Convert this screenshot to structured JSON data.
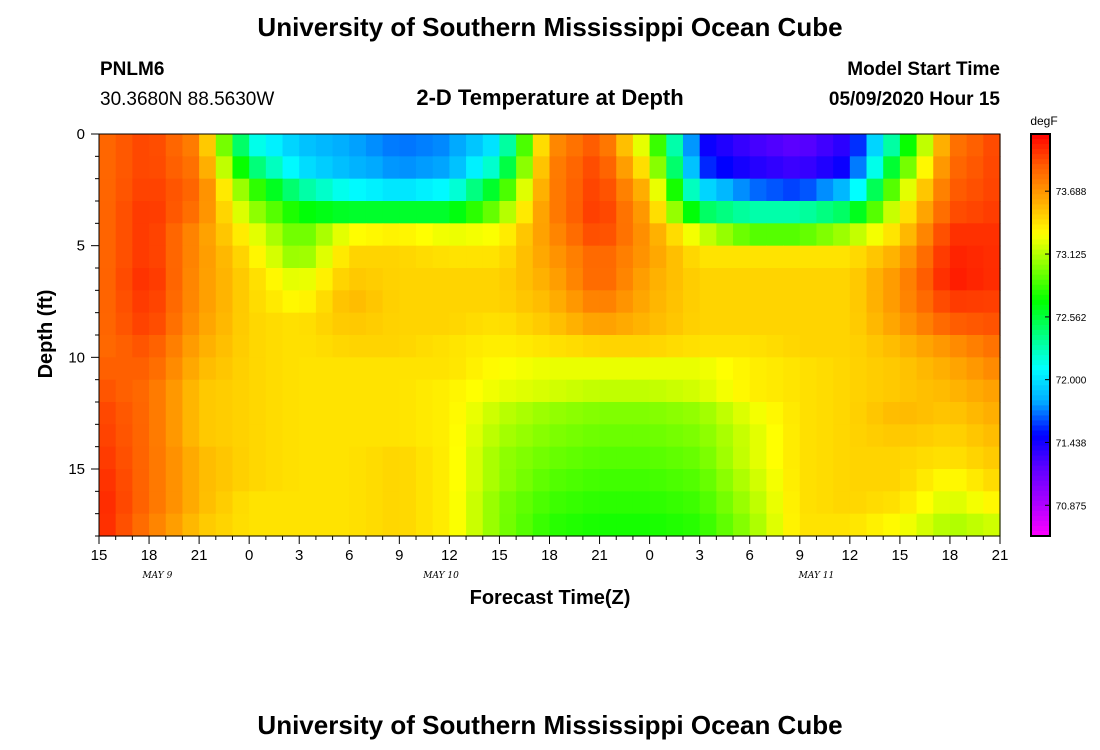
{
  "header": {
    "title": "University of Southern Mississippi Ocean Cube",
    "station": "PNLM6",
    "coords": "30.3680N 88.5630W",
    "subtitle": "2-D Temperature at Depth",
    "model_label": "Model Start Time",
    "model_time": "05/09/2020 Hour 15"
  },
  "footer": {
    "title": "University of Southern Mississippi Ocean Cube"
  },
  "chart_data": {
    "type": "heatmap",
    "title": "2-D Temperature at Depth",
    "xlabel": "Forecast Time(Z)",
    "ylabel": "Depth (ft)",
    "x_ticks": [
      "15",
      "18",
      "21",
      "0",
      "3",
      "6",
      "9",
      "12",
      "15",
      "18",
      "21",
      "0",
      "3",
      "6",
      "9",
      "12",
      "15",
      "18",
      "21"
    ],
    "date_labels": [
      {
        "text": "MAY 9",
        "at_hour": 3.5
      },
      {
        "text": "MAY 10",
        "at_hour": 20.5
      },
      {
        "text": "MAY 11",
        "at_hour": 43
      }
    ],
    "x_range_hours_from_start": [
      0,
      54
    ],
    "y_ticks": [
      0,
      5,
      10,
      15
    ],
    "ylim": [
      0,
      18
    ],
    "y_inverted": true,
    "colorbar": {
      "unit": "degF",
      "tick_values": [
        "73.688",
        "73.125",
        "72.562",
        "72.000",
        "71.438",
        "70.875"
      ],
      "range": [
        70.6,
        74.2
      ],
      "colors": [
        "#ff00ff",
        "#aa00ff",
        "#6000ff",
        "#0000ff",
        "#00aaff",
        "#00ffff",
        "#00ff80",
        "#00ff00",
        "#80ff00",
        "#ffff00",
        "#ffaa00",
        "#ff6000",
        "#ff0000"
      ]
    },
    "depth_levels_ft": [
      0.5,
      1.5,
      2.5,
      3.5,
      4.5,
      5.5,
      6.5,
      7.5,
      8.5,
      9.5,
      10.5,
      11.5,
      12.5,
      13.5,
      14.5,
      15.5,
      16.5,
      17.5
    ],
    "time_hours": [
      0,
      3,
      6,
      9,
      12,
      15,
      18,
      21,
      24,
      27,
      30,
      33,
      36,
      39,
      42,
      45,
      48,
      51,
      54
    ],
    "values_degF": [
      [
        73.85,
        74.0,
        73.75,
        72.2,
        71.9,
        71.8,
        71.7,
        71.75,
        72.05,
        73.7,
        73.95,
        73.1,
        71.5,
        71.3,
        71.2,
        71.4,
        72.5,
        73.8,
        74.0
      ],
      [
        73.85,
        74.0,
        73.8,
        72.5,
        72.0,
        71.85,
        71.75,
        71.8,
        72.3,
        73.75,
        74.0,
        73.3,
        71.6,
        71.4,
        71.3,
        71.5,
        72.8,
        73.85,
        74.0
      ],
      [
        73.85,
        74.02,
        73.85,
        72.9,
        72.35,
        72.1,
        72.0,
        72.1,
        72.7,
        73.75,
        74.03,
        73.5,
        72.0,
        71.7,
        71.6,
        71.9,
        73.1,
        73.9,
        74.0
      ],
      [
        73.85,
        74.05,
        73.8,
        73.1,
        72.7,
        72.6,
        72.6,
        72.6,
        73.0,
        73.75,
        74.05,
        73.6,
        72.5,
        72.3,
        72.3,
        72.5,
        73.3,
        73.95,
        74.02
      ],
      [
        73.85,
        74.05,
        73.7,
        73.3,
        72.9,
        73.3,
        73.35,
        73.25,
        73.3,
        73.7,
        74.0,
        73.65,
        73.2,
        72.9,
        72.9,
        73.1,
        73.45,
        74.05,
        74.05
      ],
      [
        73.85,
        74.05,
        73.7,
        73.4,
        73.0,
        73.45,
        73.45,
        73.4,
        73.4,
        73.65,
        73.9,
        73.65,
        73.4,
        73.4,
        73.4,
        73.4,
        73.6,
        74.1,
        74.05
      ],
      [
        73.85,
        74.08,
        73.68,
        73.45,
        73.2,
        73.5,
        73.45,
        73.45,
        73.45,
        73.6,
        73.9,
        73.6,
        73.45,
        73.45,
        73.45,
        73.45,
        73.7,
        74.12,
        74.05
      ],
      [
        73.85,
        74.05,
        73.68,
        73.45,
        73.3,
        73.55,
        73.45,
        73.45,
        73.45,
        73.55,
        73.8,
        73.58,
        73.45,
        73.45,
        73.45,
        73.45,
        73.7,
        74.02,
        74.0
      ],
      [
        73.85,
        74.02,
        73.65,
        73.45,
        73.4,
        73.5,
        73.45,
        73.45,
        73.4,
        73.5,
        73.65,
        73.55,
        73.45,
        73.45,
        73.45,
        73.45,
        73.65,
        73.9,
        73.95
      ],
      [
        73.85,
        73.95,
        73.6,
        73.45,
        73.4,
        73.45,
        73.45,
        73.4,
        73.35,
        73.4,
        73.45,
        73.45,
        73.4,
        73.4,
        73.45,
        73.45,
        73.55,
        73.7,
        73.85
      ],
      [
        73.9,
        73.9,
        73.55,
        73.45,
        73.4,
        73.4,
        73.4,
        73.4,
        73.3,
        73.25,
        73.25,
        73.25,
        73.25,
        73.35,
        73.4,
        73.45,
        73.5,
        73.6,
        73.75
      ],
      [
        73.95,
        73.85,
        73.5,
        73.45,
        73.4,
        73.4,
        73.4,
        73.35,
        73.25,
        73.2,
        73.15,
        73.15,
        73.2,
        73.35,
        73.4,
        73.45,
        73.5,
        73.55,
        73.65
      ],
      [
        74.0,
        73.85,
        73.5,
        73.45,
        73.4,
        73.4,
        73.4,
        73.35,
        73.15,
        73.05,
        73.0,
        73.0,
        73.05,
        73.25,
        73.4,
        73.45,
        73.55,
        73.5,
        73.6
      ],
      [
        74.02,
        73.85,
        73.5,
        73.45,
        73.4,
        73.4,
        73.4,
        73.35,
        73.1,
        73.0,
        72.95,
        72.95,
        73.0,
        73.2,
        73.4,
        73.45,
        73.5,
        73.45,
        73.55
      ],
      [
        74.05,
        73.85,
        73.55,
        73.45,
        73.4,
        73.4,
        73.45,
        73.35,
        73.05,
        72.95,
        72.9,
        72.9,
        72.95,
        73.2,
        73.4,
        73.45,
        73.45,
        73.4,
        73.5
      ],
      [
        74.08,
        73.85,
        73.55,
        73.45,
        73.4,
        73.4,
        73.45,
        73.35,
        73.05,
        72.9,
        72.85,
        72.85,
        72.9,
        73.15,
        73.4,
        73.45,
        73.45,
        73.3,
        73.45
      ],
      [
        74.1,
        73.85,
        73.55,
        73.4,
        73.4,
        73.4,
        73.45,
        73.35,
        73.0,
        72.85,
        72.8,
        72.8,
        72.85,
        73.1,
        73.4,
        73.45,
        73.4,
        73.2,
        73.35
      ],
      [
        74.1,
        73.8,
        73.5,
        73.4,
        73.4,
        73.4,
        73.45,
        73.35,
        73.0,
        72.8,
        72.75,
        72.75,
        72.8,
        73.05,
        73.4,
        73.4,
        73.3,
        73.1,
        73.2
      ]
    ]
  }
}
